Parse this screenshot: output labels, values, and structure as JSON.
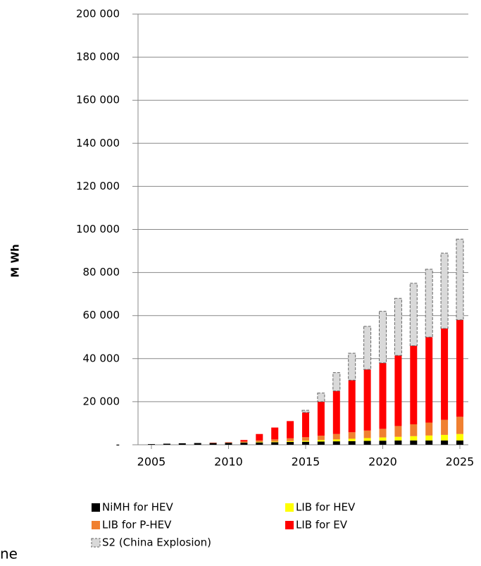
{
  "chart_data": {
    "type": "stacked_bar",
    "y_label": "M Wh",
    "x": [
      2005,
      2006,
      2007,
      2008,
      2009,
      2010,
      2011,
      2012,
      2013,
      2014,
      2015,
      2016,
      2017,
      2018,
      2019,
      2020,
      2021,
      2022,
      2023,
      2024,
      2025
    ],
    "xticks": [
      2005,
      2010,
      2015,
      2020,
      2025
    ],
    "ylim": [
      0,
      200000
    ],
    "yticks": [
      {
        "value": 0,
        "label": "-"
      },
      {
        "value": 20000,
        "label": "20 000"
      },
      {
        "value": 40000,
        "label": "40 000"
      },
      {
        "value": 60000,
        "label": "60 000"
      },
      {
        "value": 80000,
        "label": "80 000"
      },
      {
        "value": 100000,
        "label": "100 000"
      },
      {
        "value": 120000,
        "label": "120 000"
      },
      {
        "value": 140000,
        "label": "140 000"
      },
      {
        "value": 160000,
        "label": "160 000"
      },
      {
        "value": 180000,
        "label": "180 000"
      },
      {
        "value": 200000,
        "label": "200 000"
      }
    ],
    "grid": true,
    "series": [
      {
        "name": "NiMH for HEV",
        "color": "#000000",
        "values": [
          300,
          500,
          700,
          800,
          800,
          900,
          1000,
          1100,
          1200,
          1300,
          1400,
          1500,
          1600,
          1700,
          1800,
          1900,
          2000,
          2000,
          2000,
          2000,
          2000
        ]
      },
      {
        "name": "LIB for HEV",
        "color": "#ffff00",
        "values": [
          0,
          0,
          0,
          0,
          0,
          0,
          100,
          200,
          300,
          400,
          500,
          700,
          900,
          1100,
          1300,
          1500,
          1700,
          2000,
          2300,
          2600,
          3000
        ]
      },
      {
        "name": "LIB for P-HEV",
        "color": "#f08030",
        "values": [
          0,
          0,
          0,
          0,
          100,
          200,
          400,
          700,
          1000,
          1300,
          1600,
          2000,
          2500,
          3000,
          3500,
          4000,
          5000,
          5500,
          6000,
          7000,
          8000
        ]
      },
      {
        "name": "LIB for EV",
        "color": "#ff0000",
        "values": [
          0,
          0,
          0,
          0,
          100,
          100,
          700,
          3000,
          5500,
          8000,
          11500,
          15800,
          20000,
          24200,
          28400,
          30600,
          32800,
          36500,
          39700,
          42400,
          45000
        ]
      },
      {
        "name": "S2 (China Explosion)",
        "color": "#d9d9d9",
        "dashed": true,
        "values": [
          0,
          0,
          0,
          0,
          0,
          0,
          0,
          0,
          0,
          0,
          1000,
          4000,
          8500,
          12500,
          20000,
          24000,
          26500,
          29000,
          31500,
          35000,
          37500
        ]
      }
    ]
  },
  "fragment": "ne"
}
